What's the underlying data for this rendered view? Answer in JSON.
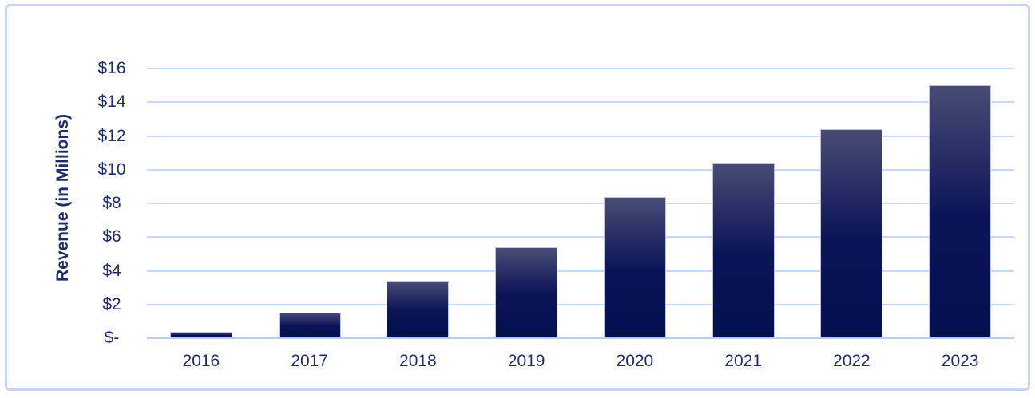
{
  "chart_data": {
    "type": "bar",
    "title": "",
    "xlabel": "",
    "ylabel": "Revenue (in Millions)",
    "categories": [
      "2016",
      "2017",
      "2018",
      "2019",
      "2020",
      "2021",
      "2022",
      "2023"
    ],
    "values": [
      0.4,
      1.5,
      3.4,
      5.4,
      8.4,
      10.4,
      12.4,
      15.0
    ],
    "ylim": [
      0,
      16
    ],
    "ytick_step": 2,
    "ytick_labels": [
      "$-",
      "$2",
      "$4",
      "$6",
      "$8",
      "$10",
      "$12",
      "$14",
      "$16"
    ],
    "grid": true,
    "legend_position": "none"
  },
  "colors": {
    "text": "#1e2c6c",
    "gridline": "#cad7f7",
    "axis_line": "#bdcdf1",
    "card_border": "#c8d4f3",
    "bar_gradient_top": "#484c74",
    "bar_gradient_mid": "#0b1458",
    "bar_gradient_bottom": "#031050",
    "bar_border": "#bfc4de",
    "background": "#ffffff"
  }
}
